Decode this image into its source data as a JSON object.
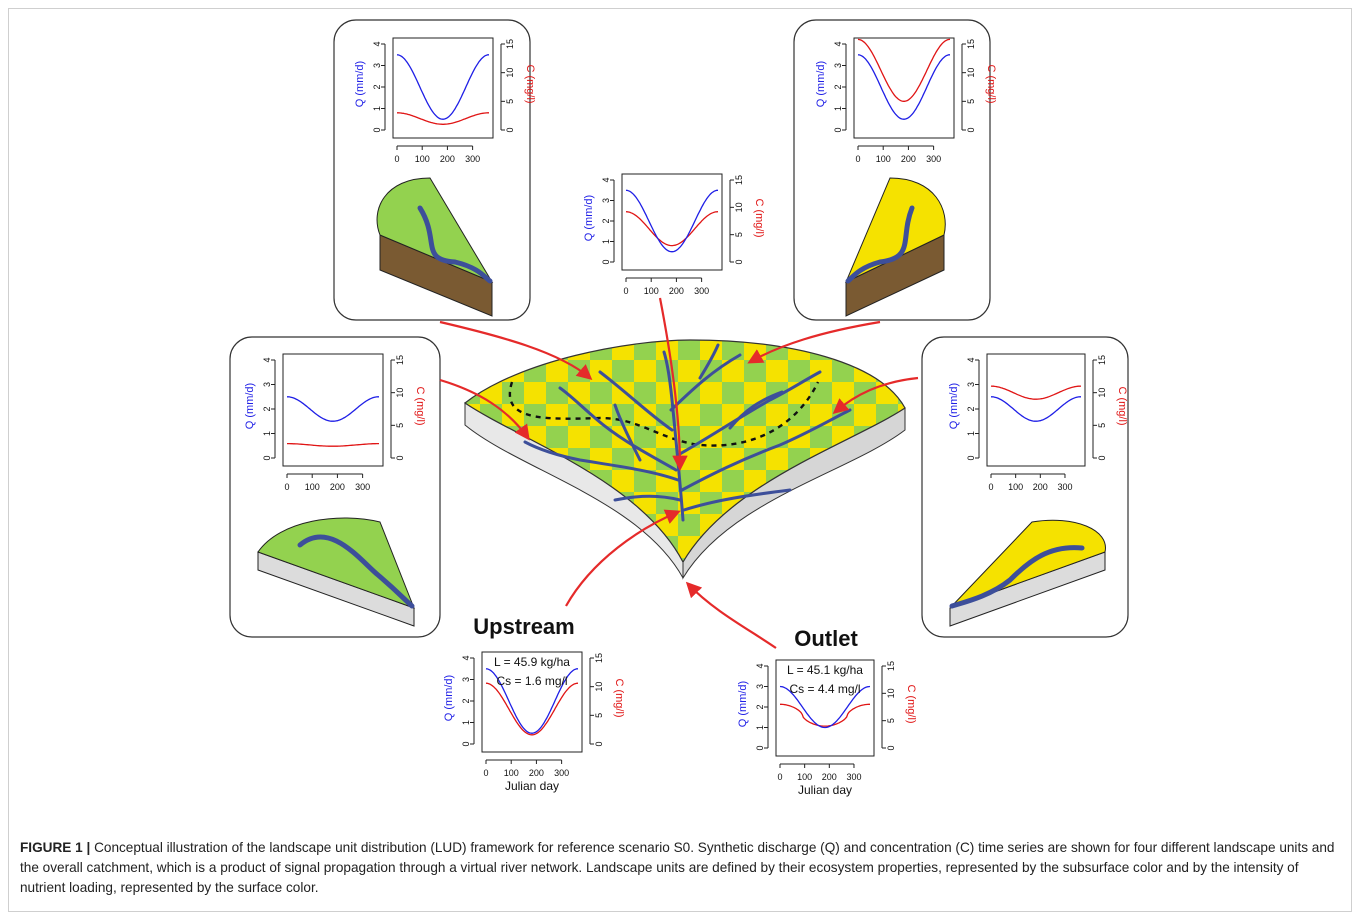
{
  "figure": {
    "caption_label": "FIGURE 1 |",
    "caption_text": "Conceptual illustration of the landscape unit distribution (LUD) framework for reference scenario S0. Synthetic discharge (Q) and concentration (C) time series are shown for four different landscape units and the overall catchment, which is a product of signal propagation through a virtual river network. Landscape units are defined by their ecosystem properties, represented by the subsurface color and by the intensity of nutrient loading, represented by the surface color."
  },
  "axes": {
    "q_label": "Q (mm/d)",
    "c_label": "C (mg/l)",
    "x_label": "Julian day",
    "x_ticks": [
      "0",
      "100",
      "200",
      "300"
    ],
    "q_ticks": [
      "0",
      "1",
      "2",
      "3",
      "4"
    ],
    "c_ticks": [
      "0",
      "5",
      "10",
      "15"
    ]
  },
  "colors": {
    "discharge": "#1f1fe6",
    "concentration": "#e01515",
    "arrow": "#e52a2a",
    "green_surface": "#93d24f",
    "yellow_surface": "#f5e200",
    "brown_subsurface": "#7a5a32",
    "grey_subsurface": "#dcdcdc",
    "river": "#3d4f9a"
  },
  "labels": {
    "upstream": "Upstream",
    "outlet": "Outlet"
  },
  "chart_data": [
    {
      "id": "top-left",
      "type": "line",
      "x": [
        0,
        365
      ],
      "q": {
        "mean": 2.0,
        "amp": 1.5
      },
      "c": {
        "mean": 2.0,
        "amp": 1.0
      }
    },
    {
      "id": "top-center",
      "type": "line",
      "x": [
        0,
        365
      ],
      "q": {
        "mean": 2.0,
        "amp": 1.5
      },
      "c": {
        "mean": 6.1,
        "amp": 3.1
      }
    },
    {
      "id": "top-right",
      "type": "line",
      "x": [
        0,
        365
      ],
      "q": {
        "mean": 2.0,
        "amp": 1.5
      },
      "c": {
        "mean": 10.4,
        "amp": 5.4
      }
    },
    {
      "id": "mid-left",
      "type": "line",
      "x": [
        0,
        365
      ],
      "q": {
        "mean": 2.0,
        "amp": 0.5
      },
      "c": {
        "mean": 2.0,
        "amp": 0.2
      }
    },
    {
      "id": "mid-right",
      "type": "line",
      "x": [
        0,
        365
      ],
      "q": {
        "mean": 2.0,
        "amp": 0.5
      },
      "c": {
        "mean": 10.0,
        "amp": 1.0
      }
    },
    {
      "id": "upstream",
      "type": "line",
      "x": [
        0,
        365
      ],
      "q": {
        "mean": 2.0,
        "amp": 1.5
      },
      "c": {
        "mean": 6.1,
        "amp": 4.5
      },
      "annotations": [
        "L = 45.9 kg/ha",
        "Cs = 1.6 mg/l"
      ]
    },
    {
      "id": "outlet",
      "type": "line",
      "x": [
        0,
        365
      ],
      "q": {
        "mean": 2.0,
        "amp": 1.0
      },
      "c": {
        "mean": 6.0,
        "amp": 2.0,
        "flatten": 1
      },
      "annotations": [
        "L = 45.1 kg/ha",
        "Cs = 4.4 mg/l"
      ]
    }
  ]
}
